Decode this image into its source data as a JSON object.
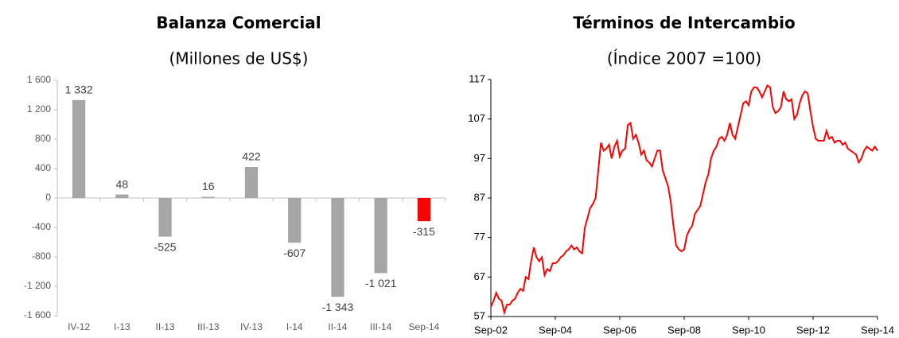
{
  "chart_data": [
    {
      "type": "bar",
      "title": "Balanza Comercial",
      "subtitle": "(Millones de US$)",
      "categories": [
        "IV-12",
        "I-13",
        "II-13",
        "III-13",
        "IV-13",
        "I-14",
        "II-14",
        "III-14",
        "Sep-14"
      ],
      "values": [
        1332,
        48,
        -525,
        16,
        422,
        -607,
        -1343,
        -1021,
        -315
      ],
      "value_labels": [
        "1 332",
        "48",
        "-525",
        "16",
        "422",
        "-607",
        "-1 343",
        "-1 021",
        "-315"
      ],
      "colors": [
        "#a6a6a6",
        "#a6a6a6",
        "#a6a6a6",
        "#a6a6a6",
        "#a6a6a6",
        "#a6a6a6",
        "#a6a6a6",
        "#a6a6a6",
        "#ff0000"
      ],
      "ylim": [
        -1600,
        1600
      ],
      "yticks": [
        {
          "value": -1600,
          "label": "-1 600"
        },
        {
          "value": -1200,
          "label": "-1 200"
        },
        -800,
        -400,
        0,
        400,
        800,
        {
          "value": 1200,
          "label": "1 200"
        },
        {
          "value": 1600,
          "label": "1 600"
        }
      ]
    },
    {
      "type": "line",
      "title": "Términos de Intercambio",
      "subtitle": "(Índice 2007 =100)",
      "categories": [
        "Sep-02",
        null,
        null,
        null,
        null,
        null,
        null,
        null,
        null,
        null,
        null,
        null,
        null,
        null,
        null,
        null,
        null,
        null,
        null,
        null,
        null,
        null,
        null,
        null,
        "Sep-04",
        null,
        null,
        null,
        null,
        null,
        null,
        null,
        null,
        null,
        null,
        null,
        null,
        null,
        null,
        null,
        null,
        null,
        null,
        null,
        null,
        null,
        null,
        null,
        "Sep-06",
        null,
        null,
        null,
        null,
        null,
        null,
        null,
        null,
        null,
        null,
        null,
        null,
        null,
        null,
        null,
        null,
        null,
        null,
        null,
        null,
        null,
        null,
        null,
        "Sep-08",
        null,
        null,
        null,
        null,
        null,
        null,
        null,
        null,
        null,
        null,
        null,
        null,
        null,
        null,
        null,
        null,
        null,
        null,
        null,
        null,
        null,
        null,
        null,
        "Sep-10",
        null,
        null,
        null,
        null,
        null,
        null,
        null,
        null,
        null,
        null,
        null,
        null,
        null,
        null,
        null,
        null,
        null,
        null,
        null,
        null,
        null,
        null,
        null,
        "Sep-12",
        null,
        null,
        null,
        null,
        null,
        null,
        null,
        null,
        null,
        null,
        null,
        null,
        null,
        null,
        null,
        null,
        null,
        null,
        null,
        null,
        null,
        null,
        null,
        "Sep-14"
      ],
      "series": [
        {
          "color": "#ff0000",
          "values": [
            59.5,
            61,
            63,
            61.5,
            61,
            58,
            60,
            60,
            61,
            61.5,
            63,
            64,
            63.5,
            67,
            66.5,
            71,
            74.5,
            72,
            71,
            72,
            67.5,
            69,
            68.5,
            70.5,
            70.5,
            71,
            72,
            72.5,
            73.5,
            74,
            75,
            74,
            74.5,
            73.5,
            73,
            79.5,
            82,
            84.5,
            85.5,
            87,
            94,
            101,
            99,
            99.5,
            100.5,
            97,
            100,
            101.5,
            97.5,
            99,
            99.5,
            105.5,
            106,
            102,
            103,
            101,
            98,
            99,
            96.5,
            96,
            95,
            97,
            99,
            99,
            94,
            92,
            90,
            86,
            80,
            75,
            74,
            73.5,
            74,
            77.5,
            79,
            80,
            83,
            84,
            85,
            88,
            91,
            93,
            97,
            99,
            100,
            102,
            102.5,
            101.5,
            103,
            106,
            103,
            102,
            105,
            108,
            111,
            111.5,
            110.5,
            114,
            115,
            115,
            114,
            112.5,
            114,
            115.5,
            115,
            110,
            108.5,
            109,
            110,
            114,
            112,
            111.5,
            112,
            107,
            108,
            111,
            113,
            114,
            113.5,
            109,
            105,
            102,
            101.5,
            101.5,
            101.5,
            104,
            102,
            102.5,
            101,
            101.5,
            101.5,
            100.5,
            101,
            99.5,
            99,
            98.5,
            98,
            96,
            97,
            99,
            100,
            99.5,
            99,
            100,
            99
          ]
        }
      ],
      "ylim": [
        57,
        117
      ],
      "yticks": [
        57,
        67,
        77,
        87,
        97,
        107,
        117
      ]
    }
  ]
}
